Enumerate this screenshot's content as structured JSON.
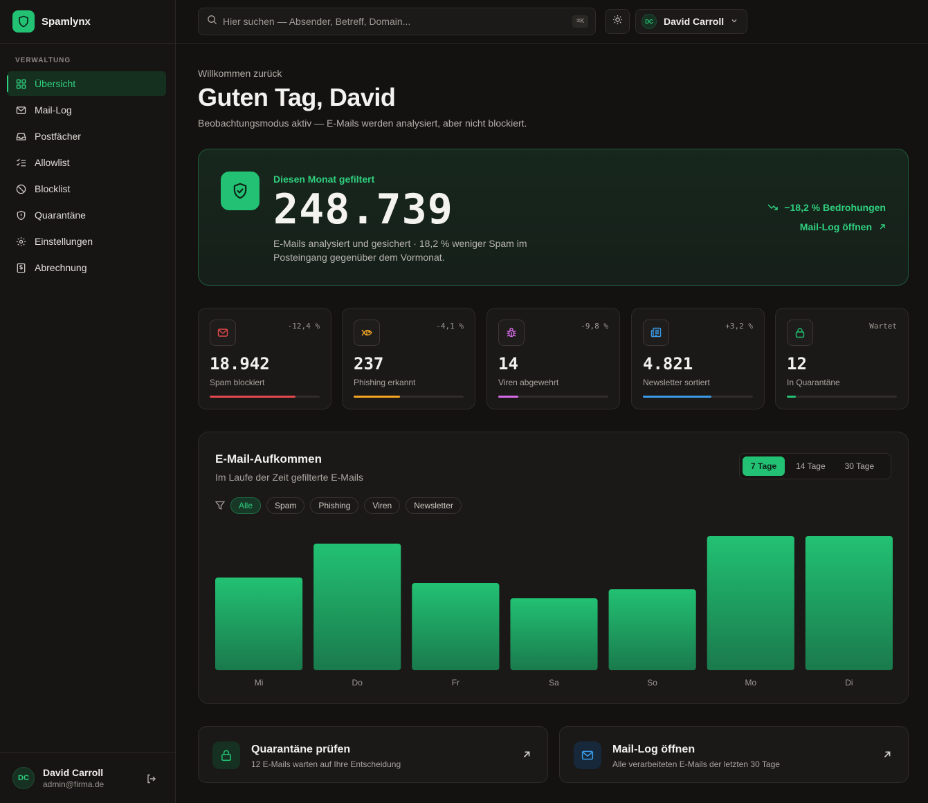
{
  "brand": {
    "name": "Spamlynx"
  },
  "sidebar": {
    "section_label": "VERWALTUNG",
    "items": [
      {
        "label": "Übersicht",
        "icon": "grid-icon",
        "active": true
      },
      {
        "label": "Mail-Log",
        "icon": "mail-icon"
      },
      {
        "label": "Postfächer",
        "icon": "inbox-icon"
      },
      {
        "label": "Allowlist",
        "icon": "list-check-icon"
      },
      {
        "label": "Blocklist",
        "icon": "ban-icon"
      },
      {
        "label": "Quarantäne",
        "icon": "shield-alert-icon"
      },
      {
        "label": "Einstellungen",
        "icon": "gear-icon"
      },
      {
        "label": "Abrechnung",
        "icon": "receipt-icon"
      }
    ],
    "user": {
      "initials": "DC",
      "name": "David Carroll",
      "email": "admin@firma.de"
    }
  },
  "header": {
    "search_placeholder": "Hier suchen — Absender, Betreff, Domain...",
    "search_shortcut": "⌘K",
    "user_initials": "DC",
    "user_name": "David Carroll"
  },
  "page": {
    "welcome": "Willkommen zurück",
    "greeting": "Guten Tag, David",
    "subtitle": "Beobachtungsmodus aktiv — E-Mails werden analysiert, aber nicht blockiert."
  },
  "hero": {
    "label": "Diesen Monat gefiltert",
    "value": "248.739",
    "description": "E-Mails analysiert und gesichert · 18,2 % weniger Spam im Posteingang gegenüber dem Vormonat.",
    "trend": "−18,2 % Bedrohungen",
    "link": "Mail-Log öffnen"
  },
  "stats": [
    {
      "value": "18.942",
      "label": "Spam blockiert",
      "delta": "-12,4 %",
      "icon": "mail-icon",
      "color": "#e5484d",
      "progress": 0.78
    },
    {
      "value": "237",
      "label": "Phishing erkannt",
      "delta": "-4,1 %",
      "icon": "fish-icon",
      "color": "#f5a524",
      "progress": 0.42
    },
    {
      "value": "14",
      "label": "Viren abgewehrt",
      "delta": "-9,8 %",
      "icon": "bug-icon",
      "color": "#d56be8",
      "progress": 0.18
    },
    {
      "value": "4.821",
      "label": "Newsletter sortiert",
      "delta": "+3,2 %",
      "icon": "newspaper-icon",
      "color": "#3b9be8",
      "progress": 0.62
    },
    {
      "value": "12",
      "label": "In Quarantäne",
      "delta": "Wartet",
      "icon": "lock-icon",
      "color": "#22c173",
      "progress": 0.08
    }
  ],
  "chart_section": {
    "title": "E-Mail-Aufkommen",
    "subtitle": "Im Laufe der Zeit gefilterte E-Mails",
    "ranges": [
      "7 Tage",
      "14 Tage",
      "30 Tage"
    ],
    "active_range": "7 Tage",
    "filters": [
      "Alle",
      "Spam",
      "Phishing",
      "Viren",
      "Newsletter"
    ],
    "active_filter": "Alle"
  },
  "chart_data": {
    "type": "bar",
    "categories": [
      "Mi",
      "Do",
      "Fr",
      "Sa",
      "So",
      "Mo",
      "Di"
    ],
    "values": [
      134,
      183,
      126,
      104,
      117,
      194,
      194
    ],
    "ylim": [
      0,
      200
    ],
    "grid": false,
    "color": "#22c173"
  },
  "actions": [
    {
      "title": "Quarantäne prüfen",
      "subtitle": "12 E-Mails warten auf Ihre Entscheidung",
      "icon": "lock-icon",
      "accent": "#22c173"
    },
    {
      "title": "Mail-Log öffnen",
      "subtitle": "Alle verarbeiteten E-Mails der letzten 30 Tage",
      "icon": "mail-icon",
      "accent": "#3b9be8"
    }
  ],
  "colors": {
    "accent": "#22c173",
    "background": "#141210",
    "card": "#1b1917"
  }
}
